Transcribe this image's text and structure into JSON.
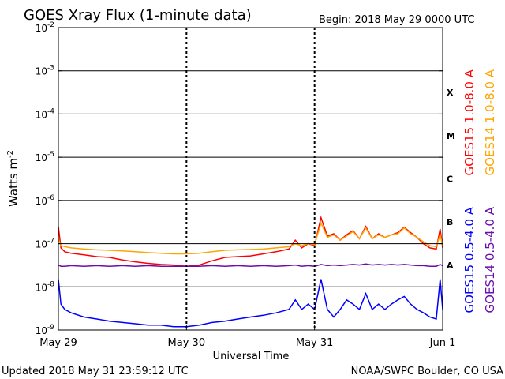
{
  "header": {
    "title": "GOES Xray Flux (1-minute data)",
    "begin": "Begin:  2018 May 29 0000 UTC"
  },
  "footer": {
    "updated": "Updated 2018 May 31 23:59:12 UTC",
    "credit": "NOAA/SWPC Boulder, CO USA"
  },
  "chart_data": {
    "type": "line",
    "title": "GOES Xray Flux (1-minute data)",
    "xlabel": "Universal Time",
    "ylabel_main": "Watts m",
    "ylabel_exp": "-2",
    "yscale": "log",
    "ylim": [
      1e-09,
      0.01
    ],
    "xlim_days": [
      0,
      3
    ],
    "x_ticks": [
      "May 29",
      "May 30",
      "May 31",
      "Jun 1"
    ],
    "y_ticks": [
      {
        "base": "10",
        "exp": "-2",
        "value": 0.01
      },
      {
        "base": "10",
        "exp": "-3",
        "value": 0.001
      },
      {
        "base": "10",
        "exp": "-4",
        "value": 0.0001
      },
      {
        "base": "10",
        "exp": "-5",
        "value": 1e-05
      },
      {
        "base": "10",
        "exp": "-6",
        "value": 1e-06
      },
      {
        "base": "10",
        "exp": "-7",
        "value": 1e-07
      },
      {
        "base": "10",
        "exp": "-8",
        "value": 1e-08
      },
      {
        "base": "10",
        "exp": "-9",
        "value": 1e-09
      }
    ],
    "flare_classes": [
      {
        "label": "X",
        "value": 0.0001
      },
      {
        "label": "M",
        "value": 1e-05
      },
      {
        "label": "C",
        "value": 1e-06
      },
      {
        "label": "B",
        "value": 1e-07
      },
      {
        "label": "A",
        "value": 1e-08
      }
    ],
    "grid": "horizontal lines at decades, dashed vertical at day boundaries",
    "series": [
      {
        "name": "GOES15 1.0-8.0 A",
        "color": "#ff0000",
        "x": [
          0.0,
          0.02,
          0.05,
          0.1,
          0.2,
          0.3,
          0.4,
          0.5,
          0.6,
          0.7,
          0.8,
          0.9,
          1.0,
          1.1,
          1.2,
          1.3,
          1.4,
          1.5,
          1.6,
          1.7,
          1.8,
          1.85,
          1.9,
          1.95,
          2.0,
          2.05,
          2.1,
          2.15,
          2.2,
          2.25,
          2.3,
          2.35,
          2.4,
          2.45,
          2.5,
          2.55,
          2.6,
          2.65,
          2.7,
          2.75,
          2.8,
          2.85,
          2.9,
          2.95,
          2.98,
          3.0
        ],
        "y": [
          2.5e-07,
          8e-08,
          6.5e-08,
          6e-08,
          5.5e-08,
          5e-08,
          4.8e-08,
          4.2e-08,
          3.8e-08,
          3.5e-08,
          3.3e-08,
          3.2e-08,
          3e-08,
          3.2e-08,
          4e-08,
          4.8e-08,
          5e-08,
          5.2e-08,
          5.8e-08,
          6.5e-08,
          7.5e-08,
          1.2e-07,
          8e-08,
          1e-07,
          9e-08,
          4e-07,
          1.5e-07,
          1.7e-07,
          1.2e-07,
          1.6e-07,
          2e-07,
          1.3e-07,
          2.5e-07,
          1.3e-07,
          1.7e-07,
          1.4e-07,
          1.6e-07,
          1.8e-07,
          2.4e-07,
          1.8e-07,
          1.4e-07,
          1e-07,
          8e-08,
          7.5e-08,
          2.2e-07,
          8e-08
        ]
      },
      {
        "name": "GOES14 1.0-8.0 A",
        "color": "#ffa500",
        "x": [
          0.0,
          0.02,
          0.05,
          0.1,
          0.2,
          0.3,
          0.4,
          0.5,
          0.6,
          0.7,
          0.8,
          0.9,
          1.0,
          1.1,
          1.2,
          1.3,
          1.4,
          1.5,
          1.6,
          1.7,
          1.8,
          1.85,
          1.9,
          1.95,
          2.0,
          2.05,
          2.1,
          2.15,
          2.2,
          2.25,
          2.3,
          2.35,
          2.4,
          2.45,
          2.5,
          2.55,
          2.6,
          2.65,
          2.7,
          2.75,
          2.8,
          2.85,
          2.9,
          2.95,
          2.98,
          3.0
        ],
        "y": [
          1.3e-07,
          9e-08,
          8.5e-08,
          8e-08,
          7.5e-08,
          7.2e-08,
          7e-08,
          6.8e-08,
          6.5e-08,
          6.2e-08,
          6e-08,
          5.8e-08,
          5.8e-08,
          6e-08,
          6.5e-08,
          7e-08,
          7.2e-08,
          7.3e-08,
          7.5e-08,
          8e-08,
          8.5e-08,
          1e-07,
          9e-08,
          1e-07,
          9.5e-08,
          3e-07,
          1.4e-07,
          1.6e-07,
          1.2e-07,
          1.5e-07,
          1.9e-07,
          1.3e-07,
          2.3e-07,
          1.3e-07,
          1.6e-07,
          1.4e-07,
          1.6e-07,
          1.7e-07,
          2.3e-07,
          1.7e-07,
          1.4e-07,
          1.1e-07,
          9e-08,
          8.5e-08,
          1.6e-07,
          9e-08
        ]
      },
      {
        "name": "GOES15 0.5-4.0 A",
        "color": "#0000ff",
        "x": [
          0.0,
          0.02,
          0.05,
          0.1,
          0.2,
          0.3,
          0.4,
          0.5,
          0.6,
          0.7,
          0.8,
          0.9,
          1.0,
          1.1,
          1.2,
          1.3,
          1.4,
          1.5,
          1.6,
          1.7,
          1.8,
          1.85,
          1.9,
          1.95,
          2.0,
          2.05,
          2.1,
          2.15,
          2.2,
          2.25,
          2.3,
          2.35,
          2.4,
          2.45,
          2.5,
          2.55,
          2.6,
          2.65,
          2.7,
          2.75,
          2.8,
          2.85,
          2.9,
          2.95,
          2.98,
          3.0
        ],
        "y": [
          1.5e-08,
          4e-09,
          3e-09,
          2.5e-09,
          2e-09,
          1.8e-09,
          1.6e-09,
          1.5e-09,
          1.4e-09,
          1.3e-09,
          1.3e-09,
          1.2e-09,
          1.2e-09,
          1.3e-09,
          1.5e-09,
          1.6e-09,
          1.8e-09,
          2e-09,
          2.2e-09,
          2.5e-09,
          3e-09,
          5e-09,
          3e-09,
          4e-09,
          3e-09,
          1.5e-08,
          3e-09,
          2e-09,
          3e-09,
          5e-09,
          4e-09,
          3e-09,
          7e-09,
          3e-09,
          4e-09,
          3e-09,
          4e-09,
          5e-09,
          6e-09,
          4e-09,
          3e-09,
          2.5e-09,
          2e-09,
          1.8e-09,
          1.5e-08,
          3e-09
        ]
      },
      {
        "name": "GOES14 0.5-4.0 A",
        "color": "#6a0dad",
        "x": [
          0.0,
          0.02,
          0.05,
          0.1,
          0.2,
          0.3,
          0.4,
          0.5,
          0.6,
          0.7,
          0.8,
          0.9,
          1.0,
          1.1,
          1.2,
          1.3,
          1.4,
          1.5,
          1.6,
          1.7,
          1.8,
          1.85,
          1.9,
          1.95,
          2.0,
          2.05,
          2.1,
          2.15,
          2.2,
          2.25,
          2.3,
          2.35,
          2.4,
          2.45,
          2.5,
          2.55,
          2.6,
          2.65,
          2.7,
          2.75,
          2.8,
          2.85,
          2.9,
          2.95,
          2.98,
          3.0
        ],
        "y": [
          3.2e-08,
          3e-08,
          3e-08,
          3.1e-08,
          3e-08,
          3.1e-08,
          3e-08,
          3.1e-08,
          3e-08,
          3.1e-08,
          3e-08,
          3e-08,
          3e-08,
          3e-08,
          3.1e-08,
          3e-08,
          3.1e-08,
          3e-08,
          3.1e-08,
          3e-08,
          3.1e-08,
          3.2e-08,
          3e-08,
          3.1e-08,
          3e-08,
          3.3e-08,
          3.1e-08,
          3.2e-08,
          3.1e-08,
          3.2e-08,
          3.3e-08,
          3.2e-08,
          3.4e-08,
          3.2e-08,
          3.3e-08,
          3.2e-08,
          3.3e-08,
          3.2e-08,
          3.3e-08,
          3.2e-08,
          3.1e-08,
          3.1e-08,
          3e-08,
          3e-08,
          3.3e-08,
          3.1e-08
        ]
      }
    ]
  }
}
